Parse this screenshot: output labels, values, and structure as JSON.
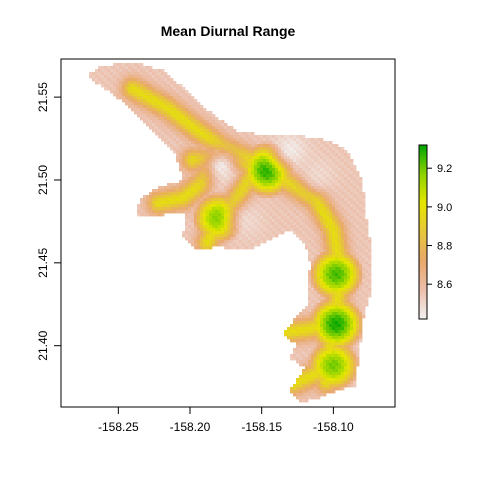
{
  "chart_data": {
    "type": "heatmap",
    "title": "Mean Diurnal Range",
    "xlabel": "",
    "ylabel": "",
    "xlim": [
      -158.29,
      -158.057
    ],
    "ylim": [
      21.363,
      21.573
    ],
    "x_ticks": [
      -158.25,
      -158.2,
      -158.15,
      -158.1
    ],
    "x_tick_labels": [
      "-158.25",
      "-158.20",
      "-158.15",
      "-158.10"
    ],
    "y_ticks": [
      21.4,
      21.45,
      21.5,
      21.55
    ],
    "y_tick_labels": [
      "21.40",
      "21.45",
      "21.50",
      "21.55"
    ],
    "colorbar": {
      "range": [
        8.42,
        9.32
      ],
      "ticks": [
        8.6,
        8.8,
        9.0,
        9.2
      ],
      "tick_labels": [
        "8.6",
        "8.8",
        "9.0",
        "9.2"
      ],
      "colors": [
        "#f2f2f2",
        "#ecc0ad",
        "#e9a96c",
        "#e6c53a",
        "#e6e600",
        "#8fd300",
        "#00a600"
      ]
    },
    "grid": false,
    "legend": "right colorbar",
    "features": {
      "ridge_centerline": [
        [
          -158.24,
          21.555
        ],
        [
          -158.215,
          21.543
        ],
        [
          -158.195,
          21.53
        ],
        [
          -158.178,
          21.52
        ],
        [
          -158.158,
          21.512
        ],
        [
          -158.145,
          21.505
        ],
        [
          -158.13,
          21.498
        ],
        [
          -158.112,
          21.488
        ],
        [
          -158.1,
          21.47
        ],
        [
          -158.095,
          21.445
        ],
        [
          -158.098,
          21.42
        ],
        [
          -158.102,
          21.4
        ],
        [
          -158.105,
          21.378
        ]
      ],
      "branches": [
        [
          [
            -158.145,
            21.505
          ],
          [
            -158.163,
            21.51
          ],
          [
            -158.178,
            21.513
          ],
          [
            -158.198,
            21.512
          ]
        ],
        [
          [
            -158.185,
            21.508
          ],
          [
            -158.193,
            21.497
          ],
          [
            -158.205,
            21.489
          ],
          [
            -158.222,
            21.486
          ]
        ],
        [
          [
            -158.16,
            21.5
          ],
          [
            -158.17,
            21.485
          ],
          [
            -158.18,
            21.475
          ],
          [
            -158.188,
            21.462
          ]
        ],
        [
          [
            -158.103,
            21.413
          ],
          [
            -158.117,
            21.41
          ],
          [
            -158.133,
            21.408
          ]
        ],
        [
          [
            -158.105,
            21.386
          ],
          [
            -158.117,
            21.381
          ],
          [
            -158.128,
            21.377
          ]
        ]
      ],
      "peaks": [
        {
          "x": -158.146,
          "y": 21.506,
          "value": 9.3
        },
        {
          "x": -158.098,
          "y": 21.413,
          "value": 9.3
        },
        {
          "x": -158.098,
          "y": 21.443,
          "value": 9.25
        },
        {
          "x": -158.18,
          "y": 21.477,
          "value": 9.2
        },
        {
          "x": -158.1,
          "y": 21.388,
          "value": 9.2
        }
      ],
      "low_zone": [
        {
          "x": -158.178,
          "y": 21.508,
          "value": 8.45
        },
        {
          "x": -158.13,
          "y": 21.518,
          "value": 8.45
        },
        {
          "x": -158.11,
          "y": 21.503,
          "value": 8.5
        },
        {
          "x": -158.16,
          "y": 21.475,
          "value": 8.5
        }
      ],
      "outline": [
        [
          -158.262,
          21.569
        ],
        [
          -158.238,
          21.571
        ],
        [
          -158.218,
          21.566
        ],
        [
          -158.2,
          21.552
        ],
        [
          -158.182,
          21.538
        ],
        [
          -158.168,
          21.53
        ],
        [
          -158.15,
          21.527
        ],
        [
          -158.13,
          21.528
        ],
        [
          -158.105,
          21.524
        ],
        [
          -158.09,
          21.518
        ],
        [
          -158.08,
          21.5
        ],
        [
          -158.077,
          21.478
        ],
        [
          -158.073,
          21.456
        ],
        [
          -158.073,
          21.436
        ],
        [
          -158.079,
          21.416
        ],
        [
          -158.082,
          21.395
        ],
        [
          -158.085,
          21.376
        ],
        [
          -158.1,
          21.372
        ],
        [
          -158.112,
          21.368
        ],
        [
          -158.124,
          21.366
        ],
        [
          -158.131,
          21.373
        ],
        [
          -158.125,
          21.38
        ],
        [
          -158.12,
          21.387
        ],
        [
          -158.132,
          21.393
        ],
        [
          -158.125,
          21.4
        ],
        [
          -158.135,
          21.407
        ],
        [
          -158.128,
          21.415
        ],
        [
          -158.117,
          21.425
        ],
        [
          -158.118,
          21.436
        ],
        [
          -158.116,
          21.45
        ],
        [
          -158.12,
          21.462
        ],
        [
          -158.13,
          21.47
        ],
        [
          -158.155,
          21.459
        ],
        [
          -158.168,
          21.458
        ],
        [
          -158.18,
          21.46
        ],
        [
          -158.195,
          21.458
        ],
        [
          -158.205,
          21.466
        ],
        [
          -158.203,
          21.48
        ],
        [
          -158.222,
          21.479
        ],
        [
          -158.238,
          21.478
        ],
        [
          -158.235,
          21.488
        ],
        [
          -158.225,
          21.495
        ],
        [
          -158.205,
          21.5
        ],
        [
          -158.21,
          21.515
        ],
        [
          -158.225,
          21.528
        ],
        [
          -158.248,
          21.548
        ],
        [
          -158.272,
          21.563
        ]
      ]
    }
  }
}
